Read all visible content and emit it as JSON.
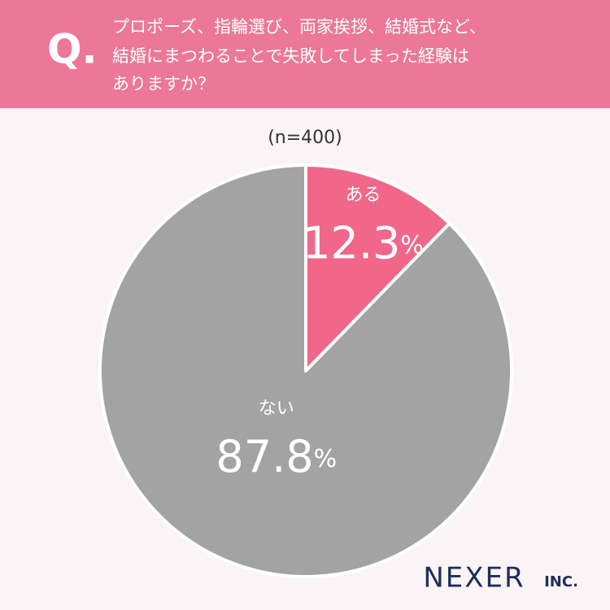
{
  "header": {
    "mark": "Q.",
    "lines": [
      "プロポーズ、指輪選び、両家挨拶、結婚式など、",
      "結婚にまつわることで失敗してしまった経験は",
      "ありますか？"
    ]
  },
  "chart_data": {
    "type": "pie",
    "subtitle": "(n=400)",
    "categories": [
      "ある",
      "ない"
    ],
    "values": [
      12.3,
      87.8
    ],
    "value_labels": [
      "12.3%",
      "87.8%"
    ],
    "colors": [
      "#f0678a",
      "#a3a3a3"
    ]
  },
  "logo": {
    "name": "NEXER",
    "suffix": "INC."
  }
}
